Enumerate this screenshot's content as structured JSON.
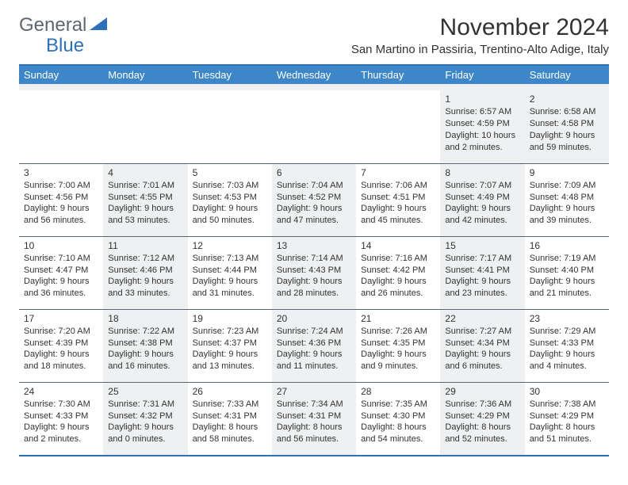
{
  "logo": {
    "text1": "General",
    "text2": "Blue"
  },
  "title": "November 2024",
  "location": "San Martino in Passiria, Trentino-Alto Adige, Italy",
  "colors": {
    "header_bg": "#3d87c9",
    "header_text": "#ffffff",
    "border": "#2f71b8",
    "row_divider": "#5a6772",
    "shaded_bg": "#eef0f1",
    "text": "#333333",
    "logo_gray": "#5b6770",
    "logo_blue": "#2f71b8"
  },
  "daysOfWeek": [
    "Sunday",
    "Monday",
    "Tuesday",
    "Wednesday",
    "Thursday",
    "Friday",
    "Saturday"
  ],
  "weeks": [
    [
      {
        "empty": true
      },
      {
        "empty": true
      },
      {
        "empty": true
      },
      {
        "empty": true
      },
      {
        "empty": true
      },
      {
        "day": "1",
        "sunrise": "6:57 AM",
        "sunset": "4:59 PM",
        "daylight": "10 hours and 2 minutes."
      },
      {
        "day": "2",
        "sunrise": "6:58 AM",
        "sunset": "4:58 PM",
        "daylight": "9 hours and 59 minutes."
      }
    ],
    [
      {
        "day": "3",
        "sunrise": "7:00 AM",
        "sunset": "4:56 PM",
        "daylight": "9 hours and 56 minutes."
      },
      {
        "day": "4",
        "sunrise": "7:01 AM",
        "sunset": "4:55 PM",
        "daylight": "9 hours and 53 minutes."
      },
      {
        "day": "5",
        "sunrise": "7:03 AM",
        "sunset": "4:53 PM",
        "daylight": "9 hours and 50 minutes."
      },
      {
        "day": "6",
        "sunrise": "7:04 AM",
        "sunset": "4:52 PM",
        "daylight": "9 hours and 47 minutes."
      },
      {
        "day": "7",
        "sunrise": "7:06 AM",
        "sunset": "4:51 PM",
        "daylight": "9 hours and 45 minutes."
      },
      {
        "day": "8",
        "sunrise": "7:07 AM",
        "sunset": "4:49 PM",
        "daylight": "9 hours and 42 minutes."
      },
      {
        "day": "9",
        "sunrise": "7:09 AM",
        "sunset": "4:48 PM",
        "daylight": "9 hours and 39 minutes."
      }
    ],
    [
      {
        "day": "10",
        "sunrise": "7:10 AM",
        "sunset": "4:47 PM",
        "daylight": "9 hours and 36 minutes."
      },
      {
        "day": "11",
        "sunrise": "7:12 AM",
        "sunset": "4:46 PM",
        "daylight": "9 hours and 33 minutes."
      },
      {
        "day": "12",
        "sunrise": "7:13 AM",
        "sunset": "4:44 PM",
        "daylight": "9 hours and 31 minutes."
      },
      {
        "day": "13",
        "sunrise": "7:14 AM",
        "sunset": "4:43 PM",
        "daylight": "9 hours and 28 minutes."
      },
      {
        "day": "14",
        "sunrise": "7:16 AM",
        "sunset": "4:42 PM",
        "daylight": "9 hours and 26 minutes."
      },
      {
        "day": "15",
        "sunrise": "7:17 AM",
        "sunset": "4:41 PM",
        "daylight": "9 hours and 23 minutes."
      },
      {
        "day": "16",
        "sunrise": "7:19 AM",
        "sunset": "4:40 PM",
        "daylight": "9 hours and 21 minutes."
      }
    ],
    [
      {
        "day": "17",
        "sunrise": "7:20 AM",
        "sunset": "4:39 PM",
        "daylight": "9 hours and 18 minutes."
      },
      {
        "day": "18",
        "sunrise": "7:22 AM",
        "sunset": "4:38 PM",
        "daylight": "9 hours and 16 minutes."
      },
      {
        "day": "19",
        "sunrise": "7:23 AM",
        "sunset": "4:37 PM",
        "daylight": "9 hours and 13 minutes."
      },
      {
        "day": "20",
        "sunrise": "7:24 AM",
        "sunset": "4:36 PM",
        "daylight": "9 hours and 11 minutes."
      },
      {
        "day": "21",
        "sunrise": "7:26 AM",
        "sunset": "4:35 PM",
        "daylight": "9 hours and 9 minutes."
      },
      {
        "day": "22",
        "sunrise": "7:27 AM",
        "sunset": "4:34 PM",
        "daylight": "9 hours and 6 minutes."
      },
      {
        "day": "23",
        "sunrise": "7:29 AM",
        "sunset": "4:33 PM",
        "daylight": "9 hours and 4 minutes."
      }
    ],
    [
      {
        "day": "24",
        "sunrise": "7:30 AM",
        "sunset": "4:33 PM",
        "daylight": "9 hours and 2 minutes."
      },
      {
        "day": "25",
        "sunrise": "7:31 AM",
        "sunset": "4:32 PM",
        "daylight": "9 hours and 0 minutes."
      },
      {
        "day": "26",
        "sunrise": "7:33 AM",
        "sunset": "4:31 PM",
        "daylight": "8 hours and 58 minutes."
      },
      {
        "day": "27",
        "sunrise": "7:34 AM",
        "sunset": "4:31 PM",
        "daylight": "8 hours and 56 minutes."
      },
      {
        "day": "28",
        "sunrise": "7:35 AM",
        "sunset": "4:30 PM",
        "daylight": "8 hours and 54 minutes."
      },
      {
        "day": "29",
        "sunrise": "7:36 AM",
        "sunset": "4:29 PM",
        "daylight": "8 hours and 52 minutes."
      },
      {
        "day": "30",
        "sunrise": "7:38 AM",
        "sunset": "4:29 PM",
        "daylight": "8 hours and 51 minutes."
      }
    ]
  ],
  "labels": {
    "sunrise": "Sunrise: ",
    "sunset": "Sunset: ",
    "daylight": "Daylight: "
  }
}
